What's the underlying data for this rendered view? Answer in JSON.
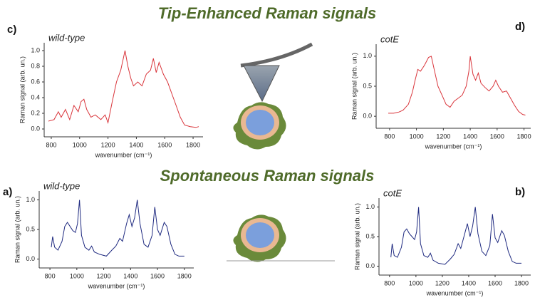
{
  "headings": {
    "top": "Tip-Enhanced  Raman signals",
    "middle": "Spontaneous Raman signals"
  },
  "chart_data": [
    {
      "type": "line",
      "panel": "c)",
      "title": "wild-type",
      "xlabel": "wavenumber (cm⁻¹)",
      "ylabel": "Raman signal (arb. un.)",
      "color": "#d9343a",
      "xlim": [
        750,
        1870
      ],
      "xticks": [
        800,
        1000,
        1200,
        1400,
        1600,
        1800
      ],
      "ylim": [
        -0.1,
        1.1
      ],
      "yticks": [
        {
          "value": 0,
          "label": "0.0"
        },
        0.2,
        0.4,
        0.6,
        0.8,
        {
          "value": 1,
          "label": "1.0"
        }
      ],
      "x": [
        780,
        820,
        850,
        870,
        900,
        930,
        960,
        990,
        1010,
        1030,
        1050,
        1080,
        1110,
        1150,
        1180,
        1200,
        1230,
        1260,
        1290,
        1320,
        1340,
        1360,
        1380,
        1410,
        1440,
        1470,
        1500,
        1520,
        1540,
        1560,
        1590,
        1620,
        1650,
        1680,
        1710,
        1740,
        1780,
        1820,
        1840
      ],
      "values": [
        0.1,
        0.12,
        0.22,
        0.15,
        0.25,
        0.12,
        0.3,
        0.22,
        0.35,
        0.38,
        0.25,
        0.15,
        0.18,
        0.12,
        0.18,
        0.08,
        0.35,
        0.6,
        0.75,
        1.0,
        0.8,
        0.65,
        0.55,
        0.6,
        0.55,
        0.7,
        0.75,
        0.9,
        0.72,
        0.85,
        0.7,
        0.6,
        0.45,
        0.3,
        0.15,
        0.05,
        0.03,
        0.02,
        0.03
      ]
    },
    {
      "type": "line",
      "panel": "d)",
      "title": "cotE",
      "xlabel": "wavenumber (cm⁻¹)",
      "ylabel": "Raman signal (arb. un.)",
      "color": "#d9343a",
      "xlim": [
        700,
        1850
      ],
      "xticks": [
        800,
        1000,
        1200,
        1400,
        1600,
        1800
      ],
      "ylim": [
        -0.2,
        1.2
      ],
      "yticks": [
        {
          "value": 0,
          "label": "0.0"
        },
        0.5,
        {
          "value": 1,
          "label": "1.0"
        }
      ],
      "x": [
        790,
        830,
        870,
        900,
        940,
        970,
        990,
        1010,
        1030,
        1060,
        1090,
        1110,
        1130,
        1160,
        1190,
        1220,
        1250,
        1280,
        1310,
        1340,
        1370,
        1390,
        1400,
        1420,
        1440,
        1460,
        1480,
        1510,
        1540,
        1570,
        1590,
        1610,
        1640,
        1670,
        1700,
        1730,
        1760,
        1790,
        1810
      ],
      "values": [
        0.05,
        0.05,
        0.07,
        0.1,
        0.2,
        0.4,
        0.6,
        0.78,
        0.75,
        0.85,
        0.98,
        1.0,
        0.8,
        0.5,
        0.35,
        0.2,
        0.15,
        0.25,
        0.3,
        0.35,
        0.5,
        0.75,
        1.0,
        0.7,
        0.6,
        0.72,
        0.55,
        0.48,
        0.42,
        0.5,
        0.6,
        0.5,
        0.4,
        0.42,
        0.3,
        0.18,
        0.08,
        0.03,
        0.02
      ]
    },
    {
      "type": "line",
      "panel": "a)",
      "title": "wild-type",
      "xlabel": "wavenumber (cm⁻¹)",
      "ylabel": "Raman signal (arb. un.)",
      "color": "#1f2a80",
      "xlim": [
        720,
        1870
      ],
      "xticks": [
        800,
        1000,
        1200,
        1400,
        1600,
        1800
      ],
      "ylim": [
        -0.15,
        1.15
      ],
      "yticks": [
        {
          "value": 0,
          "label": "0.0"
        },
        0.5,
        {
          "value": 1,
          "label": "1.0"
        }
      ],
      "x": [
        810,
        820,
        835,
        860,
        890,
        910,
        930,
        950,
        970,
        990,
        1005,
        1020,
        1035,
        1060,
        1090,
        1110,
        1130,
        1170,
        1220,
        1260,
        1290,
        1320,
        1340,
        1370,
        1390,
        1410,
        1430,
        1450,
        1470,
        1500,
        1530,
        1560,
        1580,
        1600,
        1620,
        1650,
        1670,
        1700,
        1730,
        1760,
        1800
      ],
      "values": [
        0.2,
        0.38,
        0.2,
        0.15,
        0.3,
        0.55,
        0.62,
        0.55,
        0.48,
        0.45,
        0.6,
        1.0,
        0.4,
        0.2,
        0.15,
        0.22,
        0.12,
        0.08,
        0.05,
        0.15,
        0.22,
        0.35,
        0.3,
        0.6,
        0.75,
        0.55,
        0.7,
        1.0,
        0.6,
        0.25,
        0.2,
        0.4,
        0.88,
        0.5,
        0.4,
        0.62,
        0.55,
        0.25,
        0.08,
        0.05,
        0.05
      ]
    },
    {
      "type": "line",
      "panel": "b)",
      "title": "cotE",
      "xlabel": "wavenumber (cm⁻¹)",
      "ylabel": "Raman signal (arb. un.)",
      "color": "#1f2a80",
      "xlim": [
        720,
        1870
      ],
      "xticks": [
        800,
        1000,
        1200,
        1400,
        1600,
        1800
      ],
      "ylim": [
        -0.15,
        1.15
      ],
      "yticks": [
        {
          "value": 0,
          "label": "0.0"
        },
        0.5,
        {
          "value": 1,
          "label": "1.0"
        }
      ],
      "x": [
        810,
        820,
        835,
        860,
        890,
        910,
        930,
        950,
        970,
        990,
        1005,
        1020,
        1035,
        1060,
        1090,
        1110,
        1130,
        1170,
        1220,
        1260,
        1290,
        1320,
        1340,
        1370,
        1390,
        1410,
        1430,
        1450,
        1470,
        1500,
        1530,
        1560,
        1580,
        1600,
        1620,
        1650,
        1670,
        1700,
        1730,
        1760,
        1800
      ],
      "values": [
        0.15,
        0.38,
        0.18,
        0.15,
        0.32,
        0.58,
        0.63,
        0.55,
        0.5,
        0.45,
        0.58,
        1.0,
        0.38,
        0.18,
        0.15,
        0.22,
        0.1,
        0.05,
        0.03,
        0.12,
        0.2,
        0.38,
        0.3,
        0.55,
        0.72,
        0.5,
        0.68,
        1.0,
        0.55,
        0.25,
        0.18,
        0.35,
        0.88,
        0.48,
        0.4,
        0.6,
        0.52,
        0.25,
        0.08,
        0.05,
        0.05
      ]
    }
  ]
}
